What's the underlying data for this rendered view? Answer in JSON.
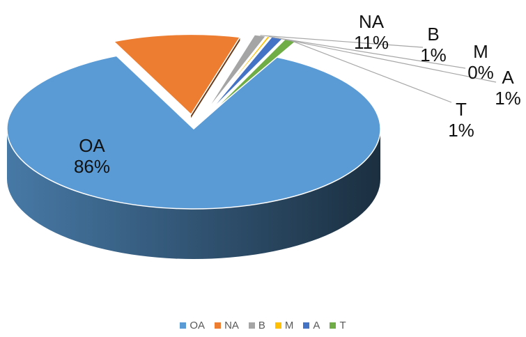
{
  "chart_data": {
    "type": "pie",
    "style": "3d-exploded",
    "categories": [
      "OA",
      "NA",
      "B",
      "M",
      "A",
      "T"
    ],
    "values": [
      86,
      11,
      1,
      0,
      1,
      1
    ],
    "value_labels": [
      "86%",
      "11%",
      "1%",
      "0%",
      "1%",
      "1%"
    ],
    "colors": [
      "#5B9BD5",
      "#ED7D31",
      "#A5A5A5",
      "#FFC000",
      "#4472C4",
      "#70AD47"
    ],
    "legend_position": "bottom",
    "title": ""
  }
}
